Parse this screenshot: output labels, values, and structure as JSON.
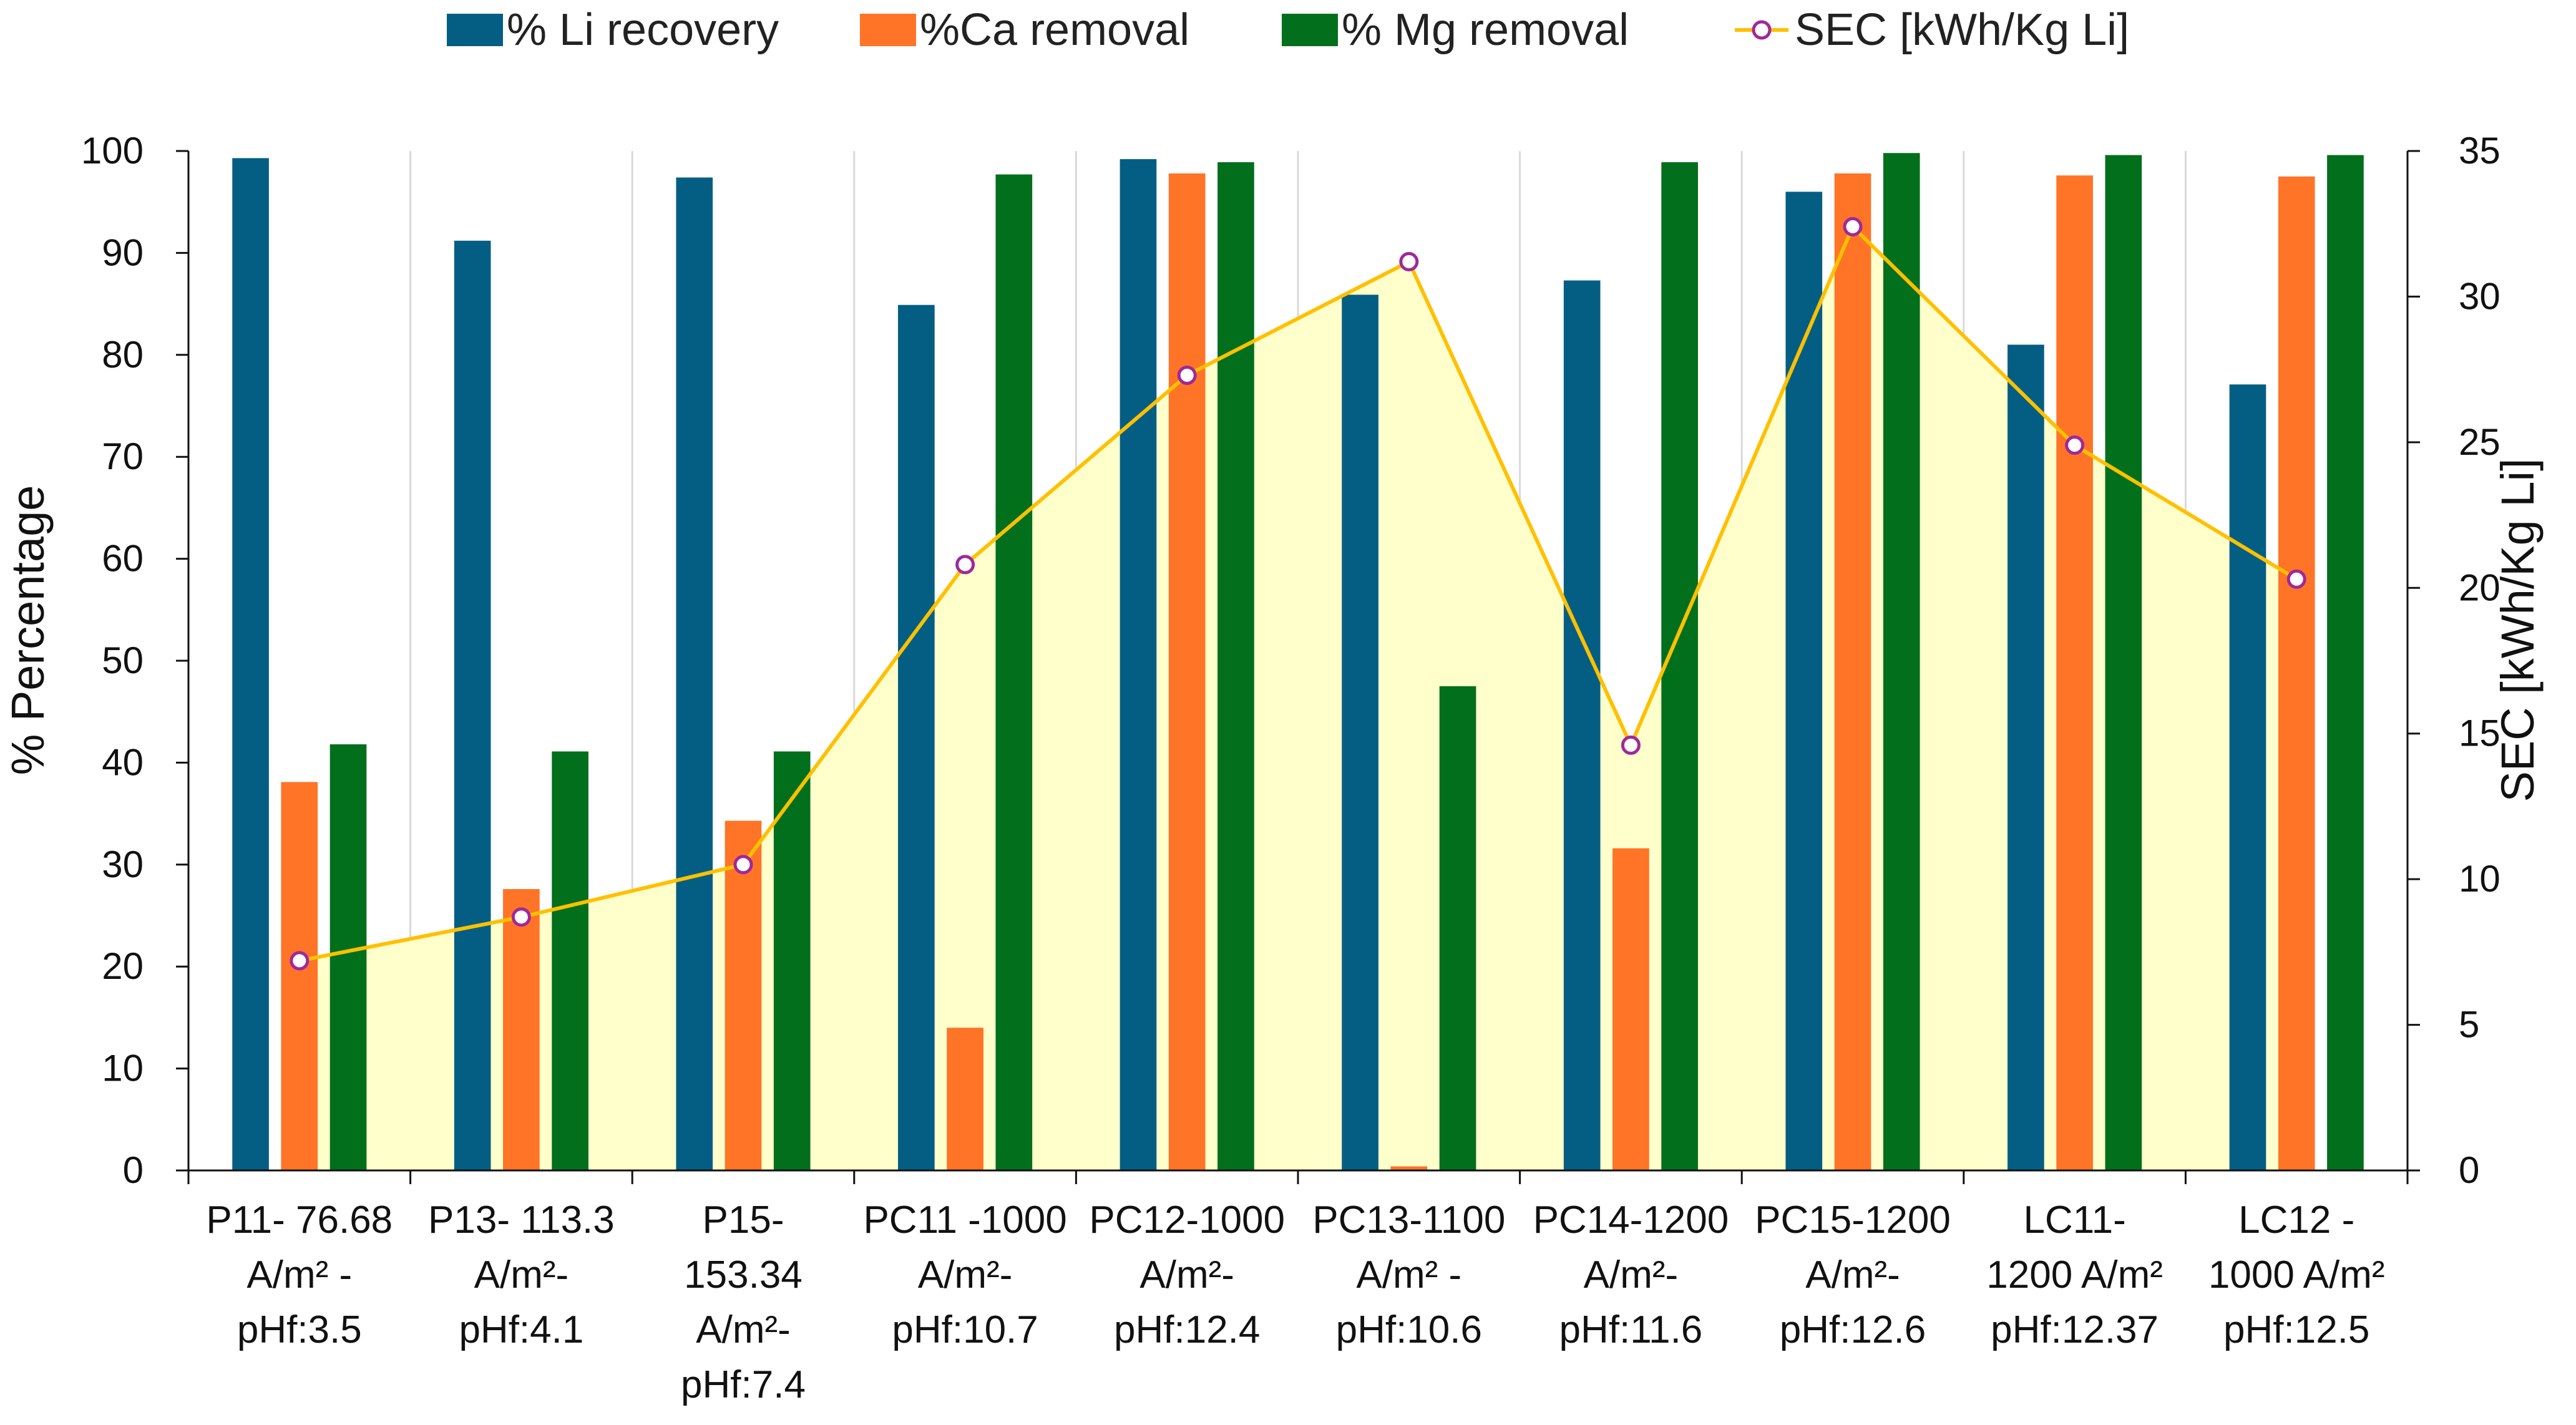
{
  "chart_data": {
    "type": "bar",
    "title": "",
    "categories": [
      [
        "P11- 76.68",
        "A/m² -",
        "pHf:3.5"
      ],
      [
        "P13- 113.3",
        "A/m²-",
        "pHf:4.1"
      ],
      [
        "P15-",
        "153.34",
        "A/m²-",
        "pHf:7.4"
      ],
      [
        "PC11 -1000",
        "A/m²-",
        "pHf:10.7"
      ],
      [
        "PC12-1000",
        "A/m²-",
        "pHf:12.4"
      ],
      [
        "PC13-1100",
        "A/m² -",
        "pHf:10.6"
      ],
      [
        "PC14-1200",
        "A/m²-",
        "pHf:11.6"
      ],
      [
        "PC15-1200",
        "A/m²-",
        "pHf:12.6"
      ],
      [
        "LC11-",
        "1200 A/m²",
        "pHf:12.37"
      ],
      [
        "LC12 -",
        "1000 A/m²",
        "pHf:12.5"
      ]
    ],
    "series": [
      {
        "name": "% Li recovery",
        "type": "bar",
        "axis": "left",
        "color": "#045E84",
        "values": [
          99.3,
          91.2,
          97.4,
          84.9,
          99.2,
          85.9,
          87.3,
          96.0,
          81.0,
          77.1
        ]
      },
      {
        "name": "%Ca removal",
        "type": "bar",
        "axis": "left",
        "color": "#FF7427",
        "values": [
          38.1,
          27.6,
          34.3,
          14.0,
          97.8,
          0.4,
          31.6,
          97.8,
          97.6,
          97.5
        ]
      },
      {
        "name": "% Mg removal",
        "type": "bar",
        "axis": "left",
        "color": "#026F1C",
        "values": [
          41.8,
          41.1,
          41.1,
          97.7,
          98.9,
          47.5,
          98.9,
          99.8,
          99.6,
          99.6
        ]
      },
      {
        "name": "SEC [kWh/Kg Li]",
        "type": "line",
        "axis": "right",
        "color": "#FFC000",
        "marker_color": "#A0289B",
        "area_fill": "#FFFFCC",
        "values": [
          7.2,
          8.7,
          10.5,
          20.8,
          27.3,
          31.2,
          14.6,
          32.4,
          24.9,
          20.3
        ]
      }
    ],
    "ylabel": "% Percentage",
    "y2label": "SEC  [kWh/Kg Li]",
    "ylim": [
      0,
      100
    ],
    "yticks": [
      "0",
      "10",
      "20",
      "30",
      "40",
      "50",
      "60",
      "70",
      "80",
      "90",
      "100"
    ],
    "y2lim": [
      0,
      35
    ],
    "y2ticks": [
      "0",
      "5",
      "10",
      "15",
      "20",
      "25",
      "30",
      "35"
    ],
    "grid": "vertical-category-separators",
    "legend_position": "top"
  }
}
